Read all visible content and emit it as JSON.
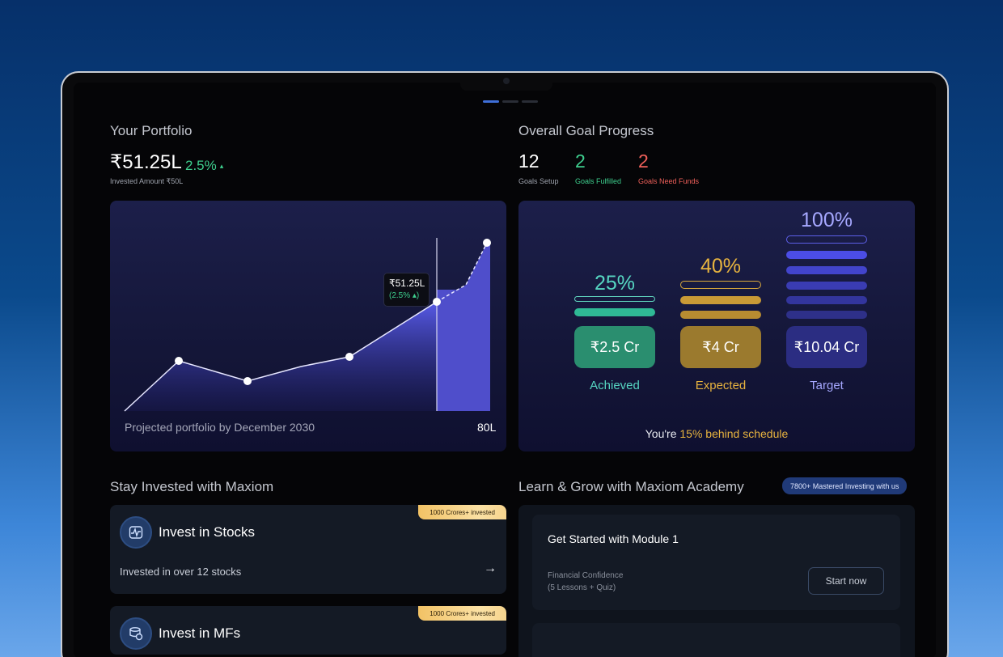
{
  "portfolio": {
    "title": "Your Portfolio",
    "value": "₹51.25L",
    "change": "2.5%",
    "invested_label": "Invested Amount ₹50L",
    "tooltip_value": "₹51.25L",
    "tooltip_change": "(2.5% ▴)",
    "projection_label": "Projected portfolio by December 2030",
    "projection_value": "80L"
  },
  "goals": {
    "title": "Overall Goal Progress",
    "setup_count": "12",
    "setup_label": "Goals Setup",
    "fulfilled_count": "2",
    "fulfilled_label": "Goals Fulfilled",
    "need_count": "2",
    "need_label": "Goals Need Funds",
    "achieved_pct": "25%",
    "achieved_amount": "₹2.5 Cr",
    "achieved_label": "Achieved",
    "expected_pct": "40%",
    "expected_amount": "₹4 Cr",
    "expected_label": "Expected",
    "target_pct": "100%",
    "target_amount": "₹10.04 Cr",
    "target_label": "Target",
    "schedule_prefix": "You're ",
    "schedule_highlight": "15% behind schedule"
  },
  "invest": {
    "title": "Stay Invested with Maxiom",
    "stocks_ribbon": "1000 Crores+ invested",
    "stocks_title": "Invest in Stocks",
    "stocks_sub": "Invested in over 12 stocks",
    "mf_ribbon": "1000 Crores+ invested",
    "mf_title": "Invest in MFs"
  },
  "academy": {
    "title": "Learn & Grow with Maxiom Academy",
    "badge": "7800+ Mastered Investing with us",
    "module_title": "Get Started with Module 1",
    "module_sub1": "Financial Confidence",
    "module_sub2": "(5 Lessons + Quiz)",
    "cta": "Start now"
  },
  "colors": {
    "green": "#3ecf8e",
    "red": "#f0605a",
    "gold": "#e7b33f",
    "achieved": "#2b8f6e",
    "expected": "#9c7a2c",
    "target": "#2c2e86"
  }
}
